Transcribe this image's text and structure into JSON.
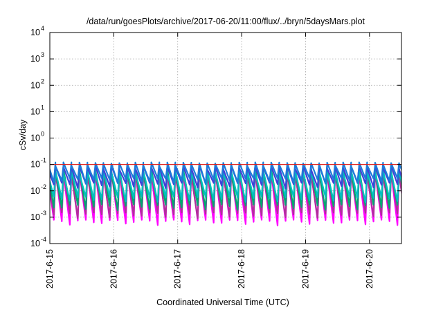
{
  "chart_data": {
    "type": "line",
    "title": "/data/run/goesPlots/archive/2017-06-20/11:00/flux/../bryn/5daysMars.plot",
    "xlabel": "Coordinated Universal Time (UTC)",
    "ylabel": "cSv/day",
    "yscale": "log",
    "ylim": [
      0.0001,
      10000
    ],
    "y_ticks": [
      {
        "exp": -4,
        "label": "10",
        "sup": "-4"
      },
      {
        "exp": -3,
        "label": "10",
        "sup": "-3"
      },
      {
        "exp": -2,
        "label": "10",
        "sup": "-2"
      },
      {
        "exp": -1,
        "label": "10",
        "sup": "-1"
      },
      {
        "exp": 0,
        "label": "10",
        "sup": "0"
      },
      {
        "exp": 1,
        "label": "10",
        "sup": "1"
      },
      {
        "exp": 2,
        "label": "10",
        "sup": "2"
      },
      {
        "exp": 3,
        "label": "10",
        "sup": "3"
      },
      {
        "exp": 4,
        "label": "10",
        "sup": "4"
      }
    ],
    "xlim": [
      "2017-06-15T00:00",
      "2017-06-20T12:00"
    ],
    "x_ticks": [
      {
        "date": "2017-06-15",
        "label": "2017-6-15"
      },
      {
        "date": "2017-06-16",
        "label": "2017-6-16"
      },
      {
        "date": "2017-06-17",
        "label": "2017-6-17"
      },
      {
        "date": "2017-06-18",
        "label": "2017-6-18"
      },
      {
        "date": "2017-06-19",
        "label": "2017-6-19"
      },
      {
        "date": "2017-06-20",
        "label": "2017-6-20"
      }
    ],
    "grid": true,
    "reference_line": {
      "y": 0.1,
      "color": "#e0201c"
    },
    "cycle_hours": 3,
    "series": [
      {
        "color": "#ff00ff",
        "peak": 0.06,
        "trough": 0.0008
      },
      {
        "color": "#b0309a",
        "peak": 0.05,
        "trough": 0.0015
      },
      {
        "color": "#00a870",
        "peak": 0.07,
        "trough": 0.003
      },
      {
        "color": "#00c0c0",
        "peak": 0.06,
        "trough": 0.006
      },
      {
        "color": "#4040d8",
        "peak": 0.09,
        "trough": 0.02
      },
      {
        "color": "#1c7cd8",
        "peak": 0.12,
        "trough": 0.03
      }
    ]
  }
}
